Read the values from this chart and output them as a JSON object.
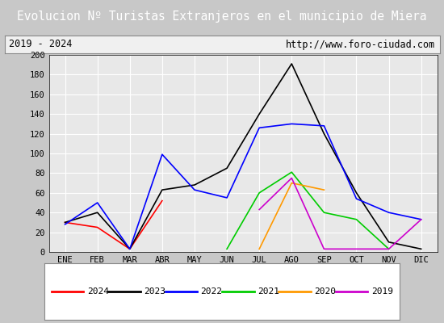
{
  "title": "Evolucion Nº Turistas Extranjeros en el municipio de Miera",
  "subtitle_left": "2019 - 2024",
  "subtitle_right": "http://www.foro-ciudad.com",
  "x_labels": [
    "ENE",
    "FEB",
    "MAR",
    "ABR",
    "MAY",
    "JUN",
    "JUL",
    "AGO",
    "SEP",
    "OCT",
    "NOV",
    "DIC"
  ],
  "ylim": [
    0,
    200
  ],
  "yticks": [
    0,
    20,
    40,
    60,
    80,
    100,
    120,
    140,
    160,
    180,
    200
  ],
  "series": {
    "2024": {
      "color": "#ff0000",
      "data": [
        30,
        25,
        3,
        52,
        null,
        null,
        null,
        null,
        null,
        null,
        null,
        null
      ]
    },
    "2023": {
      "color": "#000000",
      "data": [
        30,
        40,
        3,
        63,
        68,
        85,
        140,
        191,
        120,
        60,
        10,
        3
      ]
    },
    "2022": {
      "color": "#0000ff",
      "data": [
        28,
        50,
        3,
        99,
        63,
        55,
        126,
        130,
        128,
        54,
        40,
        33
      ]
    },
    "2021": {
      "color": "#00cc00",
      "data": [
        null,
        null,
        null,
        null,
        null,
        3,
        60,
        81,
        40,
        33,
        3,
        null
      ]
    },
    "2020": {
      "color": "#ff9900",
      "data": [
        null,
        null,
        null,
        null,
        null,
        null,
        3,
        70,
        63,
        null,
        null,
        null
      ]
    },
    "2019": {
      "color": "#cc00cc",
      "data": [
        null,
        null,
        null,
        null,
        null,
        null,
        43,
        75,
        3,
        null,
        3,
        33
      ]
    }
  },
  "title_bg_color": "#4472c4",
  "title_font_color": "#ffffff",
  "title_fontsize": 10.5,
  "plot_bg_color": "#e8e8e8",
  "grid_color": "#ffffff",
  "subtitle_bg_color": "#f0f0f0",
  "subtitle_fontsize": 8.5,
  "legend_order": [
    "2024",
    "2023",
    "2022",
    "2021",
    "2020",
    "2019"
  ]
}
